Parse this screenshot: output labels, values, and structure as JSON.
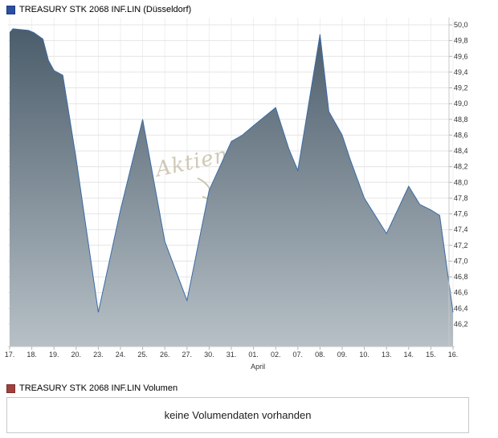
{
  "header": {
    "title": "TREASURY STK 2068 INF.LIN (Düsseldorf)"
  },
  "watermark": {
    "text": "Aktien"
  },
  "chart_data": {
    "type": "area",
    "title": "TREASURY STK 2068 INF.LIN (Düsseldorf)",
    "x_categories": [
      "17.",
      "18.",
      "19.",
      "20.",
      "23.",
      "24.",
      "25.",
      "26.",
      "27.",
      "30.",
      "31.",
      "01.",
      "02.",
      "07.",
      "08.",
      "09.",
      "10.",
      "13.",
      "14.",
      "15.",
      "16."
    ],
    "x_axis_month_label": "April",
    "values": [
      49.9,
      49.9,
      49.42,
      48.3,
      46.35,
      47.65,
      48.8,
      47.25,
      46.5,
      47.9,
      48.52,
      48.72,
      48.95,
      48.15,
      49.88,
      48.6,
      47.8,
      47.35,
      47.95,
      47.65,
      46.35
    ],
    "detail_points": [
      [
        0,
        49.9
      ],
      [
        0.15,
        49.95
      ],
      [
        0.85,
        49.93
      ],
      [
        1.1,
        49.9
      ],
      [
        1.5,
        49.82
      ],
      [
        1.75,
        49.55
      ],
      [
        2.0,
        49.42
      ],
      [
        2.4,
        49.36
      ],
      [
        3.0,
        48.3
      ],
      [
        4.0,
        46.35
      ],
      [
        5.0,
        47.65
      ],
      [
        6.0,
        48.8
      ],
      [
        7.0,
        47.25
      ],
      [
        8.0,
        46.5
      ],
      [
        9.0,
        47.9
      ],
      [
        10.0,
        48.52
      ],
      [
        10.5,
        48.6
      ],
      [
        11.0,
        48.72
      ],
      [
        12.0,
        48.95
      ],
      [
        12.6,
        48.42
      ],
      [
        13.0,
        48.15
      ],
      [
        14.0,
        49.88
      ],
      [
        14.4,
        48.9
      ],
      [
        15.0,
        48.6
      ],
      [
        15.35,
        48.3
      ],
      [
        16.0,
        47.8
      ],
      [
        17.0,
        47.35
      ],
      [
        18.0,
        47.95
      ],
      [
        18.5,
        47.72
      ],
      [
        19.0,
        47.65
      ],
      [
        19.4,
        47.58
      ],
      [
        20.0,
        46.35
      ]
    ],
    "y_ticks": [
      50.0,
      49.8,
      49.6,
      49.4,
      49.2,
      49.0,
      48.8,
      48.6,
      48.4,
      48.2,
      48.0,
      47.8,
      47.6,
      47.4,
      47.2,
      47.0,
      46.8,
      46.6,
      46.4,
      46.2
    ],
    "y_tick_labels": [
      "50,0",
      "49,8",
      "49,6",
      "49,4",
      "49,2",
      "49,0",
      "48,8",
      "48,6",
      "48,4",
      "48,2",
      "48,0",
      "47,8",
      "47,6",
      "47,4",
      "47,2",
      "47,0",
      "46,8",
      "46,6",
      "46,4",
      "46,2"
    ],
    "ylim": [
      45.9,
      50.1
    ],
    "grid": true,
    "legend_position": "top-left",
    "colors": {
      "line": "#3b6ba5",
      "area_top": "#4b5d6b",
      "area_bottom": "#b7c0c6",
      "grid": "#e4e4e4",
      "grid_vertical": "#efefef",
      "axis": "#c8c8c8",
      "tick": "#b5b5b5",
      "tick_text": "#333333",
      "price_marker": "#2b50a1",
      "volume_marker": "#a2403e",
      "watermark": "#ccc4ae"
    }
  },
  "volume": {
    "title": "TREASURY STK 2068 INF.LIN Volumen",
    "message": "keine Volumendaten vorhanden"
  }
}
